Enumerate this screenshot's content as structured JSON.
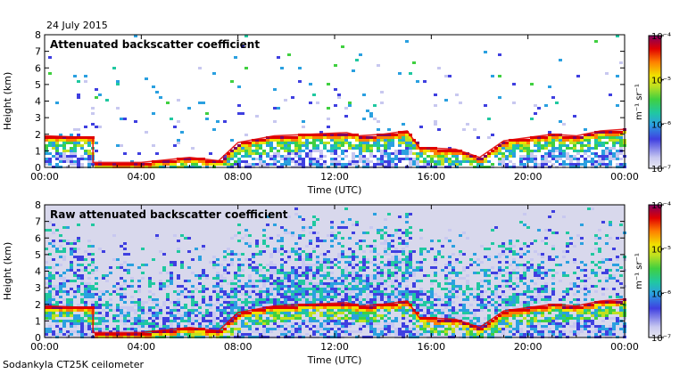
{
  "header": {
    "date": "24 July 2015"
  },
  "footer": {
    "instrument": "Sodankyla CT25K ceilometer"
  },
  "colors": {
    "background": "#ffffff",
    "frame": "#000000",
    "colormap": [
      "#e8e8f0",
      "#c8c8f0",
      "#3f3fe0",
      "#2aa0e0",
      "#20c8a0",
      "#40d040",
      "#c0e020",
      "#f0e000",
      "#ff8000",
      "#e00000",
      "#800060"
    ]
  },
  "chart_data": [
    {
      "type": "heatmap",
      "title": "Attenuated backscatter coefficient",
      "xlabel": "Time (UTC)",
      "ylabel": "Height (km)",
      "xticks": [
        "00:00",
        "04:00",
        "08:00",
        "12:00",
        "16:00",
        "20:00",
        "00:00"
      ],
      "yticks": [
        "0",
        "1",
        "2",
        "3",
        "4",
        "5",
        "6",
        "7",
        "8"
      ],
      "ylim": [
        0,
        8
      ],
      "colorbar": {
        "label": "m⁻¹ sr⁻¹",
        "ticks": [
          "10⁻⁷",
          "10⁻⁶",
          "10⁻⁵",
          "10⁻⁴"
        ],
        "scale": "log"
      },
      "cloud_base_km": [
        [
          0.0,
          1.9
        ],
        [
          2.0,
          1.8
        ],
        [
          2.0,
          0.3
        ],
        [
          4.0,
          0.3
        ],
        [
          6.0,
          0.6
        ],
        [
          7.2,
          0.4
        ],
        [
          8.0,
          1.5
        ],
        [
          9.5,
          1.9
        ],
        [
          11.0,
          2.0
        ],
        [
          12.5,
          2.1
        ],
        [
          13.0,
          1.9
        ],
        [
          14.0,
          2.0
        ],
        [
          15.0,
          2.2
        ],
        [
          15.5,
          1.2
        ],
        [
          17.0,
          1.1
        ],
        [
          18.0,
          0.6
        ],
        [
          19.0,
          1.6
        ],
        [
          21.0,
          2.0
        ],
        [
          22.0,
          1.9
        ],
        [
          23.0,
          2.2
        ],
        [
          24.0,
          2.3
        ]
      ]
    },
    {
      "type": "heatmap",
      "title": "Raw attenuated backscatter coefficient",
      "xlabel": "Time (UTC)",
      "ylabel": "Height (km)",
      "xticks": [
        "00:00",
        "04:00",
        "08:00",
        "12:00",
        "16:00",
        "20:00",
        "00:00"
      ],
      "yticks": [
        "0",
        "1",
        "2",
        "3",
        "4",
        "5",
        "6",
        "7",
        "8"
      ],
      "ylim": [
        0,
        8
      ],
      "colorbar": {
        "label": "m⁻¹ sr⁻¹",
        "ticks": [
          "10⁻⁷",
          "10⁻⁶",
          "10⁻⁵",
          "10⁻⁴"
        ],
        "scale": "log"
      },
      "cloud_base_km": [
        [
          0.0,
          1.9
        ],
        [
          2.0,
          1.8
        ],
        [
          2.0,
          0.3
        ],
        [
          4.0,
          0.3
        ],
        [
          6.0,
          0.6
        ],
        [
          7.2,
          0.4
        ],
        [
          8.0,
          1.5
        ],
        [
          9.5,
          1.9
        ],
        [
          11.0,
          2.0
        ],
        [
          12.5,
          2.1
        ],
        [
          13.0,
          1.9
        ],
        [
          14.0,
          2.0
        ],
        [
          15.0,
          2.2
        ],
        [
          15.5,
          1.2
        ],
        [
          17.0,
          1.1
        ],
        [
          18.0,
          0.6
        ],
        [
          19.0,
          1.6
        ],
        [
          21.0,
          2.0
        ],
        [
          22.0,
          1.9
        ],
        [
          23.0,
          2.2
        ],
        [
          24.0,
          2.3
        ]
      ]
    }
  ]
}
